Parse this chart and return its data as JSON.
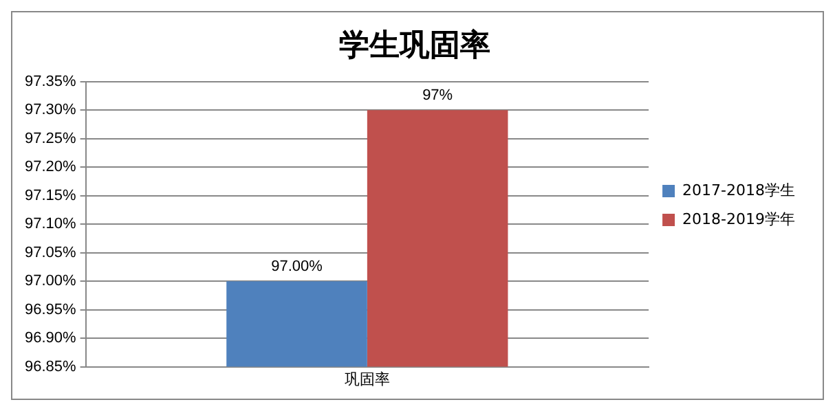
{
  "chart_data": {
    "type": "bar",
    "title": "学生巩固率",
    "categories": [
      "巩固率"
    ],
    "series": [
      {
        "name": "2017-2018学生",
        "color": "#4f81bd",
        "values": [
          97.0
        ],
        "value_labels": [
          "97.00%"
        ]
      },
      {
        "name": "2018-2019学年",
        "color": "#c0504d",
        "values": [
          97.3
        ],
        "value_labels": [
          "97%"
        ]
      }
    ],
    "ylim": [
      96.85,
      97.35
    ],
    "yticks": [
      {
        "value": 96.85,
        "label": "96.85%"
      },
      {
        "value": 96.9,
        "label": "96.90%"
      },
      {
        "value": 96.95,
        "label": "96.95%"
      },
      {
        "value": 97.0,
        "label": "97.00%"
      },
      {
        "value": 97.05,
        "label": "97.05%"
      },
      {
        "value": 97.1,
        "label": "97.10%"
      },
      {
        "value": 97.15,
        "label": "97.15%"
      },
      {
        "value": 97.2,
        "label": "97.20%"
      },
      {
        "value": 97.25,
        "label": "97.25%"
      },
      {
        "value": 97.3,
        "label": "97.30%"
      },
      {
        "value": 97.35,
        "label": "97.35%"
      }
    ],
    "grid": "y",
    "legend": "right"
  }
}
